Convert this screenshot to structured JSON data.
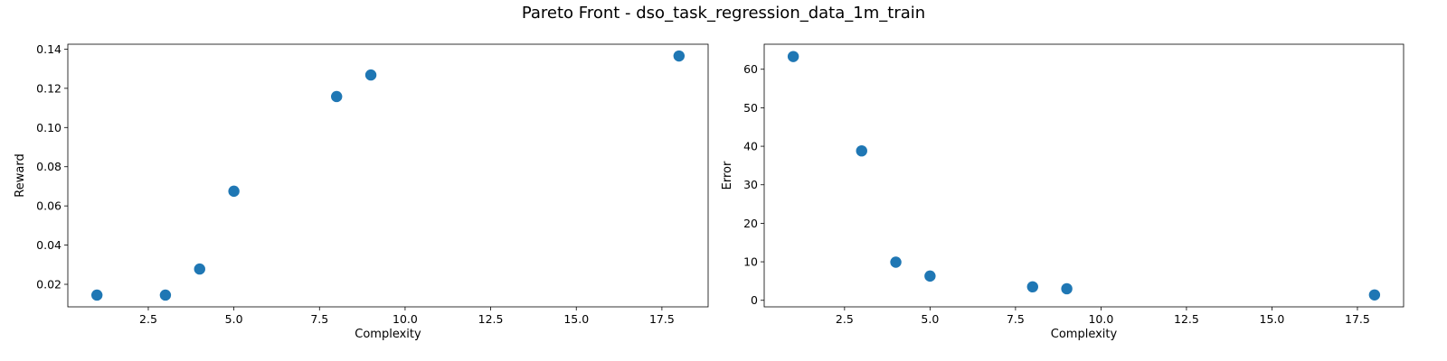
{
  "figure_title": "Pareto Front - dso_task_regression_data_1m_train",
  "marker_color": "#1f77b4",
  "chart_data": [
    {
      "type": "scatter",
      "title": "",
      "xlabel": "Complexity",
      "ylabel": "Reward",
      "xlim": [
        0.15,
        18.85
      ],
      "ylim": [
        0.0085,
        0.1425
      ],
      "xticks": [
        2.5,
        5.0,
        7.5,
        10.0,
        12.5,
        15.0,
        17.5
      ],
      "xtick_labels": [
        "2.5",
        "5.0",
        "7.5",
        "10.0",
        "12.5",
        "15.0",
        "17.5"
      ],
      "yticks": [
        0.02,
        0.04,
        0.06,
        0.08,
        0.1,
        0.12,
        0.14
      ],
      "ytick_labels": [
        "0.02",
        "0.04",
        "0.06",
        "0.08",
        "0.10",
        "0.12",
        "0.14"
      ],
      "grid": false,
      "points": [
        {
          "x": 1,
          "y": 0.0145
        },
        {
          "x": 3,
          "y": 0.0145
        },
        {
          "x": 4,
          "y": 0.0278
        },
        {
          "x": 5,
          "y": 0.0675
        },
        {
          "x": 8,
          "y": 0.1158
        },
        {
          "x": 9,
          "y": 0.1268
        },
        {
          "x": 18,
          "y": 0.1365
        }
      ]
    },
    {
      "type": "scatter",
      "title": "",
      "xlabel": "Complexity",
      "ylabel": "Error",
      "xlim": [
        0.15,
        18.85
      ],
      "ylim": [
        -1.7,
        66.5
      ],
      "xticks": [
        2.5,
        5.0,
        7.5,
        10.0,
        12.5,
        15.0,
        17.5
      ],
      "xtick_labels": [
        "2.5",
        "5.0",
        "7.5",
        "10.0",
        "12.5",
        "15.0",
        "17.5"
      ],
      "yticks": [
        0,
        10,
        20,
        30,
        40,
        50,
        60
      ],
      "ytick_labels": [
        "0",
        "10",
        "20",
        "30",
        "40",
        "50",
        "60"
      ],
      "grid": false,
      "points": [
        {
          "x": 1,
          "y": 63.3
        },
        {
          "x": 3,
          "y": 38.8
        },
        {
          "x": 4,
          "y": 9.9
        },
        {
          "x": 5,
          "y": 6.3
        },
        {
          "x": 8,
          "y": 3.5
        },
        {
          "x": 9,
          "y": 3.0
        },
        {
          "x": 18,
          "y": 1.4
        }
      ]
    }
  ]
}
